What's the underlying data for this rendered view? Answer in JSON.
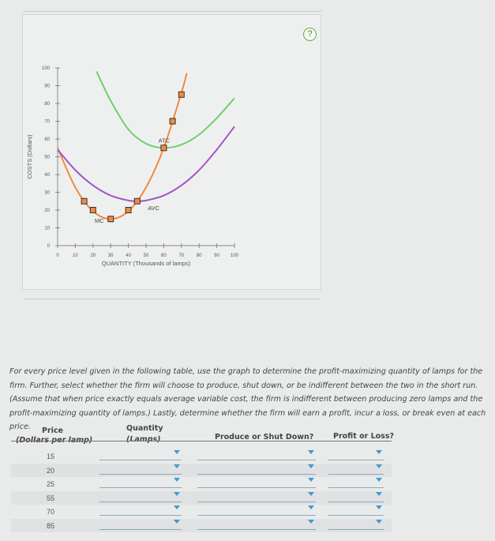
{
  "help_label": "?",
  "chart_data": {
    "type": "line",
    "xlabel": "QUANTITY (Thousands of lamps)",
    "ylabel": "COSTS (Dollars)",
    "xlim": [
      0,
      100
    ],
    "ylim": [
      0,
      100
    ],
    "xticks": [
      0,
      10,
      20,
      30,
      40,
      50,
      60,
      70,
      80,
      90,
      100
    ],
    "yticks": [
      0,
      10,
      20,
      30,
      40,
      50,
      60,
      70,
      80,
      90,
      100
    ],
    "grid": false,
    "series": [
      {
        "name": "MC",
        "color": "#f28a3c",
        "x": [
          0,
          10,
          20,
          30,
          40,
          50,
          60,
          70,
          73
        ],
        "y": [
          55,
          32.8,
          19.4,
          15,
          19.4,
          32.8,
          55,
          86,
          97
        ]
      },
      {
        "name": "AVC",
        "color": "#a454c8",
        "x": [
          0,
          10,
          20,
          30,
          40,
          45,
          50,
          60,
          70,
          80,
          90,
          100
        ],
        "y": [
          54,
          42.5,
          33.9,
          28.2,
          25.4,
          25,
          25.4,
          28.2,
          33.9,
          42.5,
          54,
          67
        ]
      },
      {
        "name": "ATC",
        "color": "#6fcf6a",
        "x": [
          22,
          30,
          40,
          50,
          60,
          70,
          80,
          90,
          100
        ],
        "y": [
          98,
          81.5,
          65.4,
          57.4,
          55,
          56.8,
          62.5,
          71.8,
          83
        ]
      }
    ],
    "mc_points": {
      "x": [
        15,
        20,
        30,
        40,
        45,
        60,
        65,
        70
      ],
      "y": [
        25,
        20,
        15,
        20,
        25,
        55,
        70,
        85
      ],
      "color": "#f28a3c"
    }
  },
  "instructions": "For every price level given in the following table, use the graph to determine the profit-maximizing quantity of lamps for the firm. Further, select whether the firm will choose to produce, shut down, or be indifferent between the two in the short run. (Assume that when price exactly equals average variable cost, the firm is indifferent between producing zero lamps and the profit-maximizing quantity of lamps.) Lastly, determine whether the firm will earn a profit, incur a loss, or break even at each price.",
  "table": {
    "headers": {
      "price": "Price",
      "price_unit": "(Dollars per lamp)",
      "quantity": "Quantity",
      "quantity_unit": "(Lamps)",
      "produce": "Produce or Shut Down?",
      "profit": "Profit or Loss?"
    },
    "rows": [
      {
        "price": "15",
        "quantity": "",
        "produce": "",
        "profit": ""
      },
      {
        "price": "20",
        "quantity": "",
        "produce": "",
        "profit": ""
      },
      {
        "price": "25",
        "quantity": "",
        "produce": "",
        "profit": ""
      },
      {
        "price": "55",
        "quantity": "",
        "produce": "",
        "profit": ""
      },
      {
        "price": "70",
        "quantity": "",
        "produce": "",
        "profit": ""
      },
      {
        "price": "85",
        "quantity": "",
        "produce": "",
        "profit": ""
      }
    ]
  }
}
